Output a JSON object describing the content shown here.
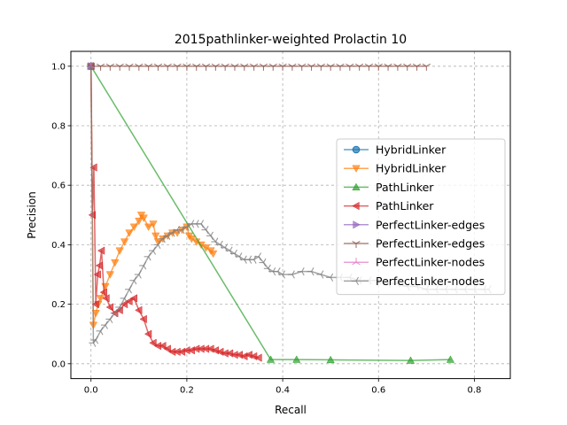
{
  "chart_data": {
    "type": "line",
    "title": "2015pathlinker-weighted Prolactin 10",
    "xlabel": "Recall",
    "ylabel": "Precision",
    "xlim": [
      -0.042,
      0.875
    ],
    "ylim": [
      -0.05,
      1.05
    ],
    "xticks": [
      0.0,
      0.2,
      0.4,
      0.6,
      0.8
    ],
    "xtick_labels": [
      "0.0",
      "0.2",
      "0.4",
      "0.6",
      "0.8"
    ],
    "yticks": [
      0.0,
      0.2,
      0.4,
      0.6,
      0.8,
      1.0
    ],
    "ytick_labels": [
      "0.0",
      "0.2",
      "0.4",
      "0.6",
      "0.8",
      "1.0"
    ],
    "grid": true,
    "legend_position": "center-right",
    "series": [
      {
        "name": "HybridLinker",
        "color": "#1f77b4",
        "marker": "circle",
        "x": [
          0.0
        ],
        "y": [
          1.0
        ]
      },
      {
        "name": "HybridLinker",
        "color": "#ff7f0e",
        "marker": "triangle-down",
        "x": [
          0.0,
          0.005,
          0.01,
          0.015,
          0.02,
          0.03,
          0.04,
          0.05,
          0.06,
          0.07,
          0.08,
          0.09,
          0.1,
          0.105,
          0.11,
          0.12,
          0.13,
          0.135,
          0.14,
          0.15,
          0.16,
          0.17,
          0.18,
          0.19,
          0.2,
          0.205,
          0.21,
          0.22,
          0.23,
          0.24,
          0.25,
          0.255
        ],
        "y": [
          1.0,
          0.13,
          0.17,
          0.2,
          0.22,
          0.26,
          0.3,
          0.34,
          0.38,
          0.41,
          0.44,
          0.46,
          0.48,
          0.5,
          0.49,
          0.46,
          0.47,
          0.43,
          0.41,
          0.42,
          0.43,
          0.44,
          0.44,
          0.45,
          0.46,
          0.43,
          0.42,
          0.41,
          0.4,
          0.39,
          0.38,
          0.37
        ]
      },
      {
        "name": "PathLinker",
        "color": "#2ca02c",
        "marker": "triangle-up",
        "x": [
          0.0,
          0.375,
          0.429,
          0.5,
          0.667,
          0.75
        ],
        "y": [
          1.0,
          0.014,
          0.014,
          0.013,
          0.011,
          0.014
        ]
      },
      {
        "name": "PathLinker",
        "color": "#d62728",
        "marker": "triangle-left",
        "x": [
          0.0,
          0.003,
          0.006,
          0.01,
          0.014,
          0.018,
          0.022,
          0.027,
          0.032,
          0.04,
          0.05,
          0.06,
          0.07,
          0.08,
          0.09,
          0.1,
          0.11,
          0.12,
          0.13,
          0.14,
          0.15,
          0.16,
          0.17,
          0.18,
          0.19,
          0.2,
          0.21,
          0.22,
          0.23,
          0.24,
          0.25,
          0.26,
          0.27,
          0.28,
          0.29,
          0.3,
          0.31,
          0.32,
          0.33,
          0.34,
          0.35
        ],
        "y": [
          1.0,
          0.5,
          0.66,
          0.2,
          0.3,
          0.33,
          0.38,
          0.24,
          0.22,
          0.19,
          0.17,
          0.18,
          0.2,
          0.21,
          0.22,
          0.18,
          0.15,
          0.1,
          0.07,
          0.06,
          0.06,
          0.05,
          0.04,
          0.04,
          0.04,
          0.045,
          0.045,
          0.05,
          0.05,
          0.05,
          0.05,
          0.045,
          0.04,
          0.035,
          0.035,
          0.03,
          0.03,
          0.025,
          0.03,
          0.025,
          0.02
        ]
      },
      {
        "name": "PerfectLinker-edges",
        "color": "#9467bd",
        "marker": "triangle-right",
        "x": [
          0.0
        ],
        "y": [
          1.0
        ]
      },
      {
        "name": "PerfectLinker-edges",
        "color": "#8c564b",
        "marker": "tri-down",
        "x": [
          0.0,
          0.02,
          0.04,
          0.06,
          0.08,
          0.1,
          0.12,
          0.14,
          0.16,
          0.18,
          0.2,
          0.22,
          0.24,
          0.26,
          0.28,
          0.3,
          0.32,
          0.34,
          0.36,
          0.38,
          0.4,
          0.42,
          0.44,
          0.46,
          0.48,
          0.5,
          0.52,
          0.54,
          0.56,
          0.58,
          0.6,
          0.62,
          0.64,
          0.66,
          0.68,
          0.7
        ],
        "y": [
          1.0,
          1.0,
          1.0,
          1.0,
          1.0,
          1.0,
          1.0,
          1.0,
          1.0,
          1.0,
          1.0,
          1.0,
          1.0,
          1.0,
          1.0,
          1.0,
          1.0,
          1.0,
          1.0,
          1.0,
          1.0,
          1.0,
          1.0,
          1.0,
          1.0,
          1.0,
          1.0,
          1.0,
          1.0,
          1.0,
          1.0,
          1.0,
          1.0,
          1.0,
          1.0,
          1.0
        ]
      },
      {
        "name": "PerfectLinker-nodes",
        "color": "#e377c2",
        "marker": "tri-up",
        "x": [
          0.0
        ],
        "y": [
          1.0
        ]
      },
      {
        "name": "PerfectLinker-nodes",
        "color": "#7f7f7f",
        "marker": "tri-left",
        "x": [
          0.0,
          0.005,
          0.01,
          0.02,
          0.03,
          0.04,
          0.05,
          0.06,
          0.07,
          0.08,
          0.09,
          0.1,
          0.11,
          0.12,
          0.13,
          0.14,
          0.15,
          0.16,
          0.17,
          0.18,
          0.19,
          0.2,
          0.21,
          0.22,
          0.23,
          0.24,
          0.25,
          0.26,
          0.27,
          0.28,
          0.29,
          0.3,
          0.31,
          0.32,
          0.33,
          0.34,
          0.35,
          0.36,
          0.37,
          0.38,
          0.39,
          0.4,
          0.42,
          0.44,
          0.46,
          0.48,
          0.5,
          0.52,
          0.54,
          0.56,
          0.58,
          0.6,
          0.62,
          0.64,
          0.66,
          0.68,
          0.7,
          0.72,
          0.74,
          0.76,
          0.78,
          0.8,
          0.82,
          0.83
        ],
        "y": [
          1.0,
          0.07,
          0.08,
          0.11,
          0.13,
          0.15,
          0.17,
          0.19,
          0.22,
          0.25,
          0.28,
          0.3,
          0.33,
          0.36,
          0.38,
          0.4,
          0.42,
          0.43,
          0.44,
          0.45,
          0.45,
          0.46,
          0.47,
          0.47,
          0.47,
          0.45,
          0.43,
          0.41,
          0.4,
          0.39,
          0.38,
          0.37,
          0.36,
          0.35,
          0.35,
          0.35,
          0.36,
          0.34,
          0.32,
          0.31,
          0.31,
          0.3,
          0.3,
          0.31,
          0.31,
          0.3,
          0.29,
          0.29,
          0.29,
          0.28,
          0.28,
          0.28,
          0.27,
          0.27,
          0.26,
          0.26,
          0.25,
          0.25,
          0.25,
          0.25,
          0.25,
          0.25,
          0.25,
          0.25
        ]
      }
    ]
  }
}
